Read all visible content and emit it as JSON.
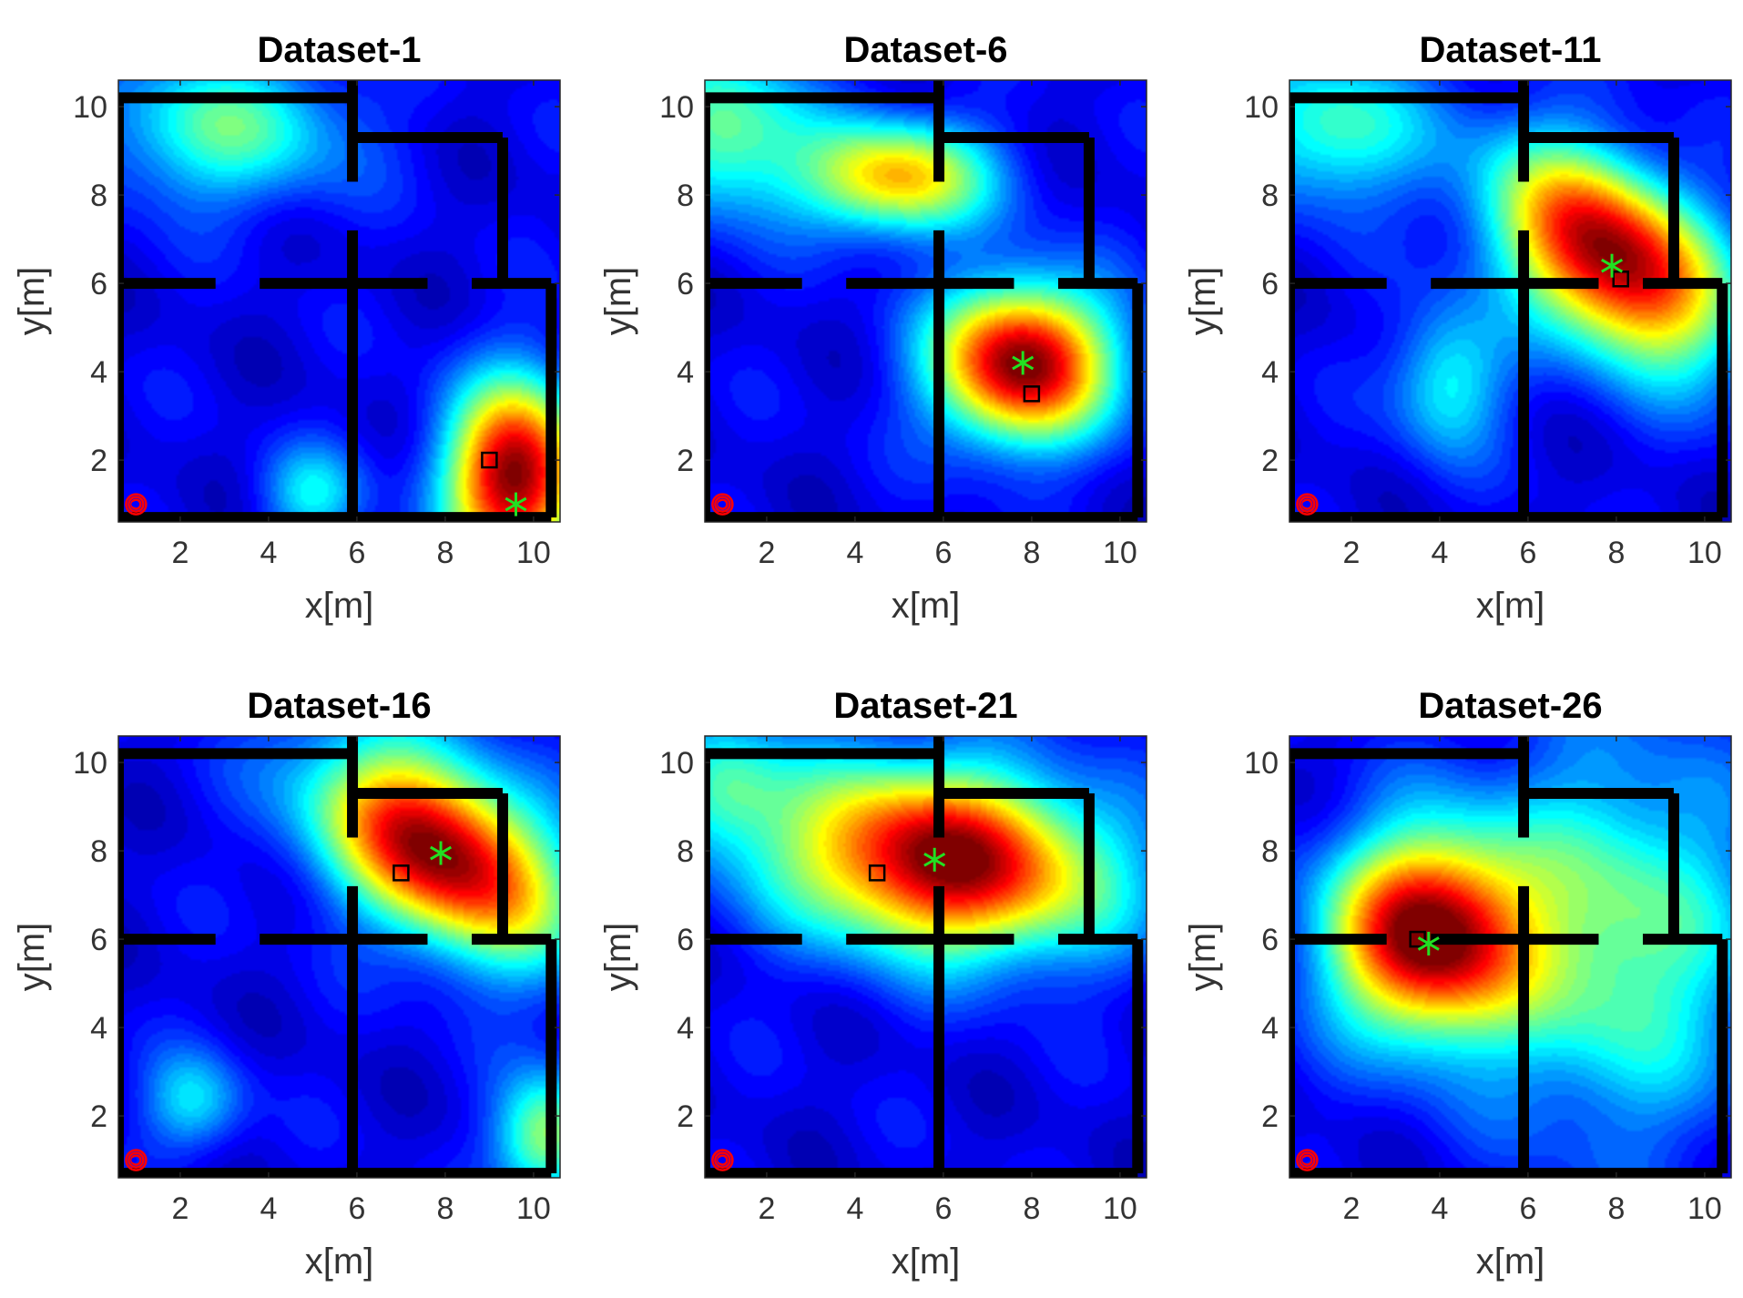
{
  "figure": {
    "colors": {
      "wall": "#000000",
      "estimate_marker": "#22e022",
      "true_marker": "#000000",
      "anchor_marker": "#ff0000",
      "background_low": "#0000a8"
    }
  },
  "chart_data": [
    {
      "type": "heatmap",
      "title": "Dataset-1",
      "xlabel": "x[m]",
      "ylabel": "y[m]",
      "xlim": [
        0.6,
        10.6
      ],
      "ylim": [
        0.6,
        10.6
      ],
      "xticks": [
        2,
        4,
        6,
        8,
        10
      ],
      "yticks": [
        2,
        4,
        6,
        8,
        10
      ],
      "peak": {
        "x": 9.6,
        "y": 1.6,
        "sx": 1.1,
        "sy": 1.5,
        "rot": 0
      },
      "blobs": [
        {
          "x": 3.0,
          "y": 9.5,
          "sx": 2.0,
          "sy": 1.2,
          "a": 0.35
        },
        {
          "x": 5.0,
          "y": 1.2,
          "sx": 0.8,
          "sy": 0.8,
          "a": 0.25
        }
      ],
      "true_location": {
        "x": 9.0,
        "y": 2.0
      },
      "estimated_location": {
        "x": 9.6,
        "y": 1.0
      },
      "anchor": {
        "x": 1.0,
        "y": 1.0
      }
    },
    {
      "type": "heatmap",
      "title": "Dataset-6",
      "xlabel": "x[m]",
      "ylabel": "y[m]",
      "xlim": [
        0.6,
        10.6
      ],
      "ylim": [
        0.6,
        10.6
      ],
      "xticks": [
        2,
        4,
        6,
        8,
        10
      ],
      "yticks": [
        2,
        4,
        6,
        8,
        10
      ],
      "peak": {
        "x": 7.8,
        "y": 4.2,
        "sx": 1.4,
        "sy": 1.25,
        "rot": 0
      },
      "blobs": [
        {
          "x": 4.9,
          "y": 8.4,
          "sx": 1.5,
          "sy": 0.9,
          "a": 0.6
        },
        {
          "x": 1.0,
          "y": 9.5,
          "sx": 1.3,
          "sy": 1.3,
          "a": 0.4
        }
      ],
      "true_location": {
        "x": 8.0,
        "y": 3.5
      },
      "estimated_location": {
        "x": 7.8,
        "y": 4.2
      },
      "anchor": {
        "x": 1.0,
        "y": 1.0
      }
    },
    {
      "type": "heatmap",
      "title": "Dataset-11",
      "xlabel": "x[m]",
      "ylabel": "y[m]",
      "xlim": [
        0.6,
        10.6
      ],
      "ylim": [
        0.6,
        10.6
      ],
      "xticks": [
        2,
        4,
        6,
        8,
        10
      ],
      "yticks": [
        2,
        4,
        6,
        8,
        10
      ],
      "peak": {
        "x": 7.9,
        "y": 6.6,
        "sx": 2.1,
        "sy": 1.3,
        "rot": -0.7
      },
      "blobs": [
        {
          "x": 1.5,
          "y": 9.5,
          "sx": 1.5,
          "sy": 1.2,
          "a": 0.35
        },
        {
          "x": 4.2,
          "y": 3.8,
          "sx": 0.9,
          "sy": 1.2,
          "a": 0.3
        }
      ],
      "true_location": {
        "x": 8.1,
        "y": 6.1
      },
      "estimated_location": {
        "x": 7.9,
        "y": 6.4
      },
      "anchor": {
        "x": 1.0,
        "y": 1.0
      }
    },
    {
      "type": "heatmap",
      "title": "Dataset-16",
      "xlabel": "x[m]",
      "ylabel": "y[m]",
      "xlim": [
        0.6,
        10.6
      ],
      "ylim": [
        0.6,
        10.6
      ],
      "xticks": [
        2,
        4,
        6,
        8,
        10
      ],
      "yticks": [
        2,
        4,
        6,
        8,
        10
      ],
      "peak": {
        "x": 7.9,
        "y": 8.0,
        "sx": 2.2,
        "sy": 1.3,
        "rot": -0.6
      },
      "blobs": [
        {
          "x": 10.3,
          "y": 1.5,
          "sx": 0.8,
          "sy": 1.0,
          "a": 0.45
        },
        {
          "x": 2.3,
          "y": 2.3,
          "sx": 0.8,
          "sy": 0.8,
          "a": 0.25
        }
      ],
      "true_location": {
        "x": 7.0,
        "y": 7.5
      },
      "estimated_location": {
        "x": 7.9,
        "y": 7.95
      },
      "anchor": {
        "x": 1.0,
        "y": 1.0
      }
    },
    {
      "type": "heatmap",
      "title": "Dataset-21",
      "xlabel": "x[m]",
      "ylabel": "y[m]",
      "xlim": [
        0.6,
        10.6
      ],
      "ylim": [
        0.6,
        10.6
      ],
      "xticks": [
        2,
        4,
        6,
        8,
        10
      ],
      "yticks": [
        2,
        4,
        6,
        8,
        10
      ],
      "peak": {
        "x": 6.0,
        "y": 7.8,
        "sx": 2.6,
        "sy": 1.45,
        "rot": -0.12
      },
      "blobs": [
        {
          "x": 1.0,
          "y": 9.5,
          "sx": 1.0,
          "sy": 1.0,
          "a": 0.3
        }
      ],
      "true_location": {
        "x": 4.5,
        "y": 7.5
      },
      "estimated_location": {
        "x": 5.8,
        "y": 7.8
      },
      "anchor": {
        "x": 1.0,
        "y": 1.0
      }
    },
    {
      "type": "heatmap",
      "title": "Dataset-26",
      "xlabel": "x[m]",
      "ylabel": "y[m]",
      "xlim": [
        0.6,
        10.6
      ],
      "ylim": [
        0.6,
        10.6
      ],
      "xticks": [
        2,
        4,
        6,
        8,
        10
      ],
      "yticks": [
        2,
        4,
        6,
        8,
        10
      ],
      "peak": {
        "x": 3.7,
        "y": 6.1,
        "sx": 1.55,
        "sy": 1.6,
        "rot": 0
      },
      "blobs": [
        {
          "x": 8.0,
          "y": 6.0,
          "sx": 2.2,
          "sy": 3.0,
          "a": 0.4
        }
      ],
      "true_location": {
        "x": 3.5,
        "y": 6.0
      },
      "estimated_location": {
        "x": 3.75,
        "y": 5.9
      },
      "anchor": {
        "x": 1.0,
        "y": 1.0
      }
    }
  ],
  "floor_plan": {
    "walls": [
      [
        [
          0.6,
          10.2
        ],
        [
          5.9,
          10.2
        ]
      ],
      [
        [
          5.9,
          10.6
        ],
        [
          5.9,
          8.3
        ]
      ],
      [
        [
          5.9,
          7.2
        ],
        [
          5.9,
          0.7
        ]
      ],
      [
        [
          5.9,
          9.3
        ],
        [
          9.3,
          9.3
        ]
      ],
      [
        [
          9.3,
          9.3
        ],
        [
          9.3,
          6.0
        ]
      ],
      [
        [
          0.6,
          6.0
        ],
        [
          2.8,
          6.0
        ]
      ],
      [
        [
          3.8,
          6.0
        ],
        [
          7.6,
          6.0
        ]
      ],
      [
        [
          8.6,
          6.0
        ],
        [
          10.4,
          6.0
        ]
      ],
      [
        [
          10.4,
          6.0
        ],
        [
          10.4,
          0.7
        ]
      ],
      [
        [
          0.6,
          0.7
        ],
        [
          10.4,
          0.7
        ]
      ],
      [
        [
          0.6,
          10.2
        ],
        [
          0.6,
          0.7
        ]
      ]
    ]
  }
}
